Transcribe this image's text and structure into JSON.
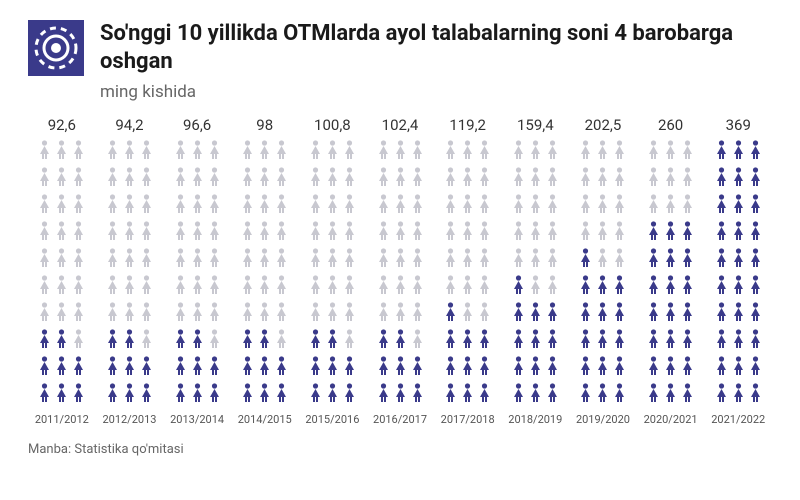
{
  "header": {
    "title": "So'nggi 10 yillikda OTMlarda ayol talabalarning soni 4 barobarga oshgan",
    "subtitle": "ming kishida",
    "icon_bg": "#3a3a8a",
    "icon_fg": "#ffffff"
  },
  "chart": {
    "type": "pictogram",
    "total_icons_per_column": 30,
    "icon_columns": 3,
    "icon_rows": 10,
    "baseline_value": 92.6,
    "max_value": 369,
    "colors": {
      "filled": "#3a3a8a",
      "empty": "#c8c8d0",
      "background": "#ffffff",
      "text": "#333333",
      "text_muted": "#666666"
    },
    "value_fontsize": 15,
    "year_fontsize": 11,
    "series": [
      {
        "year": "2011/2012",
        "value": "92,6",
        "filled": 8
      },
      {
        "year": "2012/2013",
        "value": "94,2",
        "filled": 8
      },
      {
        "year": "2013/2014",
        "value": "96,6",
        "filled": 8
      },
      {
        "year": "2014/2015",
        "value": "98",
        "filled": 8
      },
      {
        "year": "2015/2016",
        "value": "100,8",
        "filled": 8
      },
      {
        "year": "2016/2017",
        "value": "102,4",
        "filled": 8
      },
      {
        "year": "2017/2018",
        "value": "119,2",
        "filled": 10
      },
      {
        "year": "2018/2019",
        "value": "159,4",
        "filled": 13
      },
      {
        "year": "2019/2020",
        "value": "202,5",
        "filled": 16
      },
      {
        "year": "2020/2021",
        "value": "260",
        "filled": 21
      },
      {
        "year": "2021/2022",
        "value": "369",
        "filled": 30
      }
    ]
  },
  "source": {
    "label": "Manba: Statistika qo'mitasi"
  }
}
